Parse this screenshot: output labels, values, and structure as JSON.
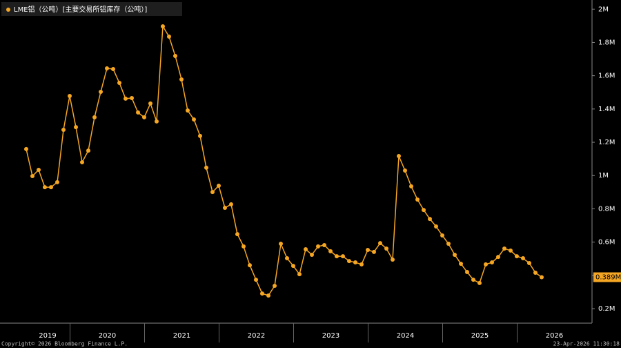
{
  "chart_data": {
    "type": "line",
    "legend": "LME铝（公吨）[主要交易所铝库存（公吨）]",
    "color": "#f5a623",
    "background": "#000000",
    "xlabels": [
      "2019",
      "2020",
      "2021",
      "2022",
      "2023",
      "2024",
      "2025",
      "2026"
    ],
    "values": [
      1159000,
      997000,
      1034000,
      930000,
      930000,
      960000,
      1275000,
      1478000,
      1291000,
      1080000,
      1150000,
      1350000,
      1503000,
      1644000,
      1640000,
      1557000,
      1462000,
      1466000,
      1379000,
      1350000,
      1433000,
      1325000,
      1897000,
      1835000,
      1719000,
      1578000,
      1391000,
      1337000,
      1238000,
      1047000,
      901000,
      939000,
      806000,
      827000,
      648000,
      574000,
      461000,
      374000,
      291000,
      279000,
      337000,
      590000,
      503000,
      457000,
      407000,
      557000,
      524000,
      574000,
      582000,
      545000,
      515000,
      515000,
      486000,
      478000,
      466000,
      553000,
      541000,
      594000,
      561000,
      495000,
      1117000,
      1030000,
      935000,
      856000,
      793000,
      739000,
      694000,
      640000,
      590000,
      524000,
      470000,
      420000,
      374000,
      354000,
      466000,
      478000,
      511000,
      561000,
      549000,
      515000,
      503000,
      474000,
      416000,
      389000
    ],
    "value_labels": [
      null,
      null,
      null,
      null,
      null,
      null,
      null,
      null,
      null,
      null,
      null,
      null,
      null,
      null,
      null,
      null,
      null,
      null,
      null,
      null,
      null,
      null,
      null,
      null,
      null,
      null,
      null,
      null,
      null,
      null,
      null,
      null,
      null,
      null,
      null,
      null,
      null,
      null,
      null,
      null,
      null,
      null,
      null,
      null,
      null,
      null,
      null,
      null,
      null,
      null,
      null,
      null,
      null,
      null,
      null,
      null,
      null,
      null,
      null,
      null,
      null,
      null,
      null,
      null,
      null,
      null,
      null,
      null,
      null,
      null,
      null,
      null,
      null,
      null,
      null,
      null,
      null,
      null,
      null,
      null,
      null,
      null,
      null,
      "0.389M"
    ],
    "ylim": [
      113000,
      2055000
    ],
    "yticks": [
      {
        "value": 200000,
        "label": "0.2M"
      },
      {
        "value": 400000,
        "label": "0.4M"
      },
      {
        "value": 600000,
        "label": "0.6M"
      },
      {
        "value": 800000,
        "label": "0.8M"
      },
      {
        "value": 1000000,
        "label": "1M"
      },
      {
        "value": 1200000,
        "label": "1.2M"
      },
      {
        "value": 1400000,
        "label": "1.4M"
      },
      {
        "value": 1600000,
        "label": "1.6M"
      },
      {
        "value": 1800000,
        "label": "1.8M"
      },
      {
        "value": 2000000,
        "label": "2M"
      }
    ],
    "copyright": "Copyright© 2026 Bloomberg Finance L.P.",
    "timestamp": "23-Apr-2026 11:30:18"
  }
}
